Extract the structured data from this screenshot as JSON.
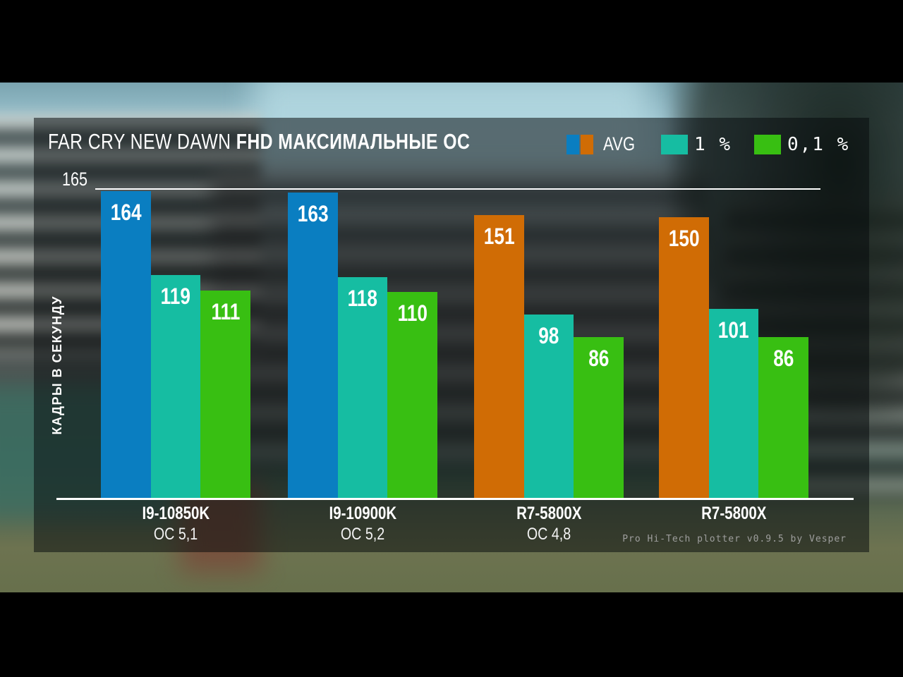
{
  "title": {
    "game": "FAR CRY NEW DAWN",
    "settings": "FHD МАКСИМАЛЬНЫЕ OC"
  },
  "legend": {
    "items": [
      {
        "label": "AVG",
        "swatch": [
          "#0a7ec1",
          "#d06c05"
        ]
      },
      {
        "label": "1 %",
        "swatch": [
          "#16bda2"
        ]
      },
      {
        "label": "0,1 %",
        "swatch": [
          "#38bf12"
        ]
      }
    ]
  },
  "y_axis": {
    "label": "КАДРЫ В СЕКУНДУ",
    "max_label": "165"
  },
  "footer": {
    "credit": "Pro Hi-Tech plotter v0.9.5 by Vesper"
  },
  "colors": {
    "avg_intel": "#0a7ec1",
    "avg_amd": "#d06c05",
    "one_percent": "#16bda2",
    "point_one_percent": "#38bf12",
    "axis_line": "#ffffff",
    "panel_overlay": "rgba(6,9,11,0.52)"
  },
  "chart_data": {
    "type": "bar",
    "title": "FAR CRY NEW DAWN FHD МАКСИМАЛЬНЫЕ OC",
    "ylabel": "КАДРЫ В СЕКУНДУ",
    "ylim": [
      0,
      165
    ],
    "grid": "single top gridline at 165",
    "legend_position": "top-right",
    "categories": [
      {
        "label": "I9-10850K",
        "oc": "OC 5,1"
      },
      {
        "label": "I9-10900K",
        "oc": "OC 5,2"
      },
      {
        "label": "R7-5800X",
        "oc": "OC 4,8"
      },
      {
        "label": "R7-5800X",
        "oc": ""
      }
    ],
    "series": [
      {
        "name": "AVG",
        "values": [
          164,
          163,
          151,
          150
        ],
        "colors": [
          "#0a7ec1",
          "#0a7ec1",
          "#d06c05",
          "#d06c05"
        ]
      },
      {
        "name": "1 %",
        "values": [
          119,
          118,
          98,
          101
        ],
        "color": "#16bda2"
      },
      {
        "name": "0,1 %",
        "values": [
          111,
          110,
          86,
          86
        ],
        "color": "#38bf12"
      }
    ]
  }
}
